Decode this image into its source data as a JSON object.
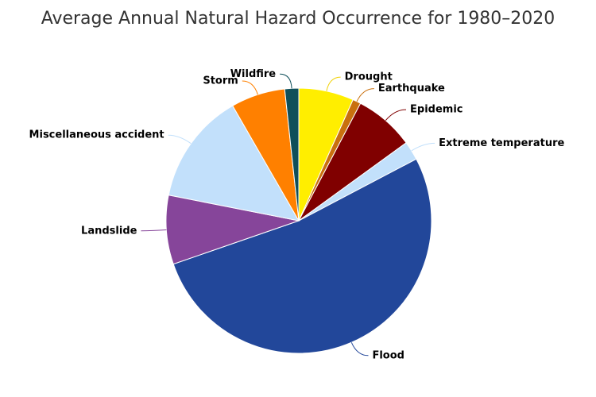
{
  "chart_data": {
    "type": "pie",
    "title": "Average Annual Natural Hazard Occurrence for 1980–2020",
    "categories": [
      "Drought",
      "Earthquake",
      "Epidemic",
      "Extreme temperature",
      "Flood",
      "Landslide",
      "Miscellaneous accident",
      "Storm",
      "Wildfire"
    ],
    "values": [
      6.7,
      1.0,
      7.3,
      2.3,
      52.4,
      8.4,
      13.6,
      6.6,
      1.7
    ],
    "colors": [
      "#ffee00",
      "#c9700e",
      "#800000",
      "#c2e0fb",
      "#22479a",
      "#86459a",
      "#c2e0fb",
      "#ff8000",
      "#0f4f5a"
    ]
  }
}
